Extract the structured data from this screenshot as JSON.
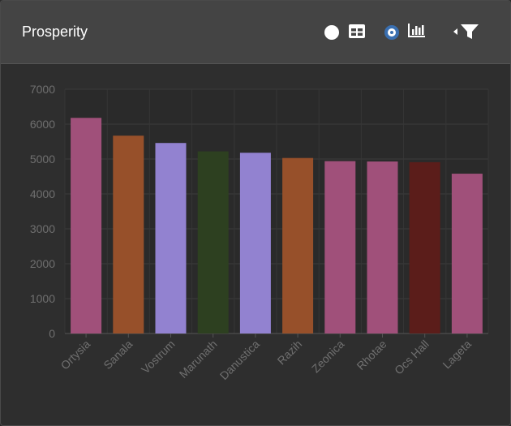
{
  "header": {
    "title": "Prosperity",
    "view_options": [
      {
        "name": "table",
        "icon": "table-icon",
        "selected": false
      },
      {
        "name": "chart",
        "icon": "bar-chart-icon",
        "selected": true
      }
    ],
    "filter_icon": "filter-icon"
  },
  "colors": {
    "pink": "#a0507a",
    "orange": "#97502a",
    "lavender": "#9282d0",
    "darkgreen": "#2d4020",
    "darkred": "#5b1d1a"
  },
  "chart_data": {
    "type": "bar",
    "categories": [
      "Ortysia",
      "Sanala",
      "Vostrum",
      "Marunath",
      "Danustica",
      "Razih",
      "Zeonica",
      "Rhotae",
      "Ocs Hall",
      "Lageta"
    ],
    "values": [
      6180,
      5670,
      5460,
      5220,
      5180,
      5030,
      4940,
      4930,
      4910,
      4580
    ],
    "bar_colors": [
      "#a0507a",
      "#97502a",
      "#9282d0",
      "#2d4020",
      "#9282d0",
      "#97502a",
      "#a0507a",
      "#a0507a",
      "#5b1d1a",
      "#a0507a"
    ],
    "yticks": [
      "0",
      "1000",
      "2000",
      "3000",
      "4000",
      "5000",
      "6000",
      "7000"
    ],
    "ylim": [
      0,
      7000
    ],
    "title": "",
    "xlabel": "",
    "ylabel": "",
    "grid": true
  }
}
